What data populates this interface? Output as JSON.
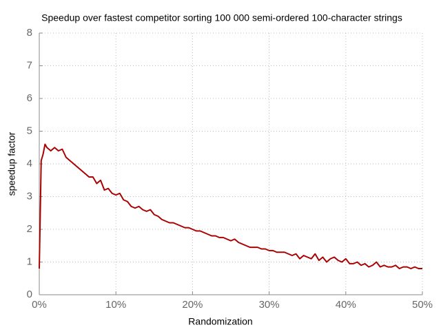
{
  "chart_data": {
    "type": "line",
    "title": "Speedup over fastest competitor sorting 100 000 semi-ordered 100-character strings",
    "x_label": "Randomization",
    "y_label": "speedup factor",
    "x": [
      0,
      0.25,
      0.5,
      0.75,
      1,
      1.5,
      2,
      2.5,
      3,
      3.5,
      4,
      4.5,
      5,
      5.5,
      6,
      6.5,
      7,
      7.5,
      8,
      8.5,
      9,
      9.5,
      10,
      10.5,
      11,
      11.5,
      12,
      12.5,
      13,
      13.5,
      14,
      14.5,
      15,
      15.5,
      16,
      16.5,
      17,
      17.5,
      18,
      18.5,
      19,
      19.5,
      20,
      20.5,
      21,
      21.5,
      22,
      22.5,
      23,
      23.5,
      24,
      24.5,
      25,
      25.5,
      26,
      26.5,
      27,
      27.5,
      28,
      28.5,
      29,
      29.5,
      30,
      30.5,
      31,
      31.5,
      32,
      32.5,
      33,
      33.5,
      34,
      34.5,
      35,
      35.5,
      36,
      36.5,
      37,
      37.5,
      38,
      38.5,
      39,
      39.5,
      40,
      40.5,
      41,
      41.5,
      42,
      42.5,
      43,
      43.5,
      44,
      44.5,
      45,
      45.5,
      46,
      46.5,
      47,
      47.5,
      48,
      48.5,
      49,
      49.5,
      50
    ],
    "values": [
      0.8,
      4.1,
      4.3,
      4.6,
      4.5,
      4.4,
      4.5,
      4.4,
      4.45,
      4.2,
      4.1,
      4.0,
      3.9,
      3.8,
      3.7,
      3.6,
      3.6,
      3.4,
      3.5,
      3.2,
      3.25,
      3.1,
      3.05,
      3.1,
      2.9,
      2.85,
      2.7,
      2.65,
      2.7,
      2.6,
      2.55,
      2.6,
      2.45,
      2.4,
      2.3,
      2.25,
      2.2,
      2.2,
      2.15,
      2.1,
      2.05,
      2.05,
      2.0,
      1.95,
      1.95,
      1.9,
      1.85,
      1.8,
      1.8,
      1.75,
      1.75,
      1.7,
      1.65,
      1.7,
      1.6,
      1.55,
      1.5,
      1.45,
      1.45,
      1.45,
      1.4,
      1.4,
      1.35,
      1.35,
      1.3,
      1.3,
      1.3,
      1.25,
      1.2,
      1.25,
      1.1,
      1.2,
      1.15,
      1.1,
      1.25,
      1.05,
      1.15,
      1.0,
      1.1,
      1.15,
      1.05,
      1.0,
      1.1,
      0.95,
      0.95,
      1.0,
      0.9,
      0.95,
      0.85,
      0.9,
      1.0,
      0.85,
      0.9,
      0.85,
      0.85,
      0.9,
      0.8,
      0.85,
      0.85,
      0.8,
      0.85,
      0.8,
      0.8
    ],
    "color": "#aa0000",
    "xlim": [
      0,
      50
    ],
    "xticks": [
      {
        "value": 0,
        "label": "0%"
      },
      {
        "value": 10,
        "label": "10%"
      },
      {
        "value": 20,
        "label": "20%"
      },
      {
        "value": 30,
        "label": "30%"
      },
      {
        "value": 40,
        "label": "40%"
      },
      {
        "value": 50,
        "label": "50%"
      }
    ],
    "ylim": [
      0,
      8
    ],
    "yticks": [
      0,
      1,
      2,
      3,
      4,
      5,
      6,
      7,
      8
    ],
    "grid": true
  }
}
